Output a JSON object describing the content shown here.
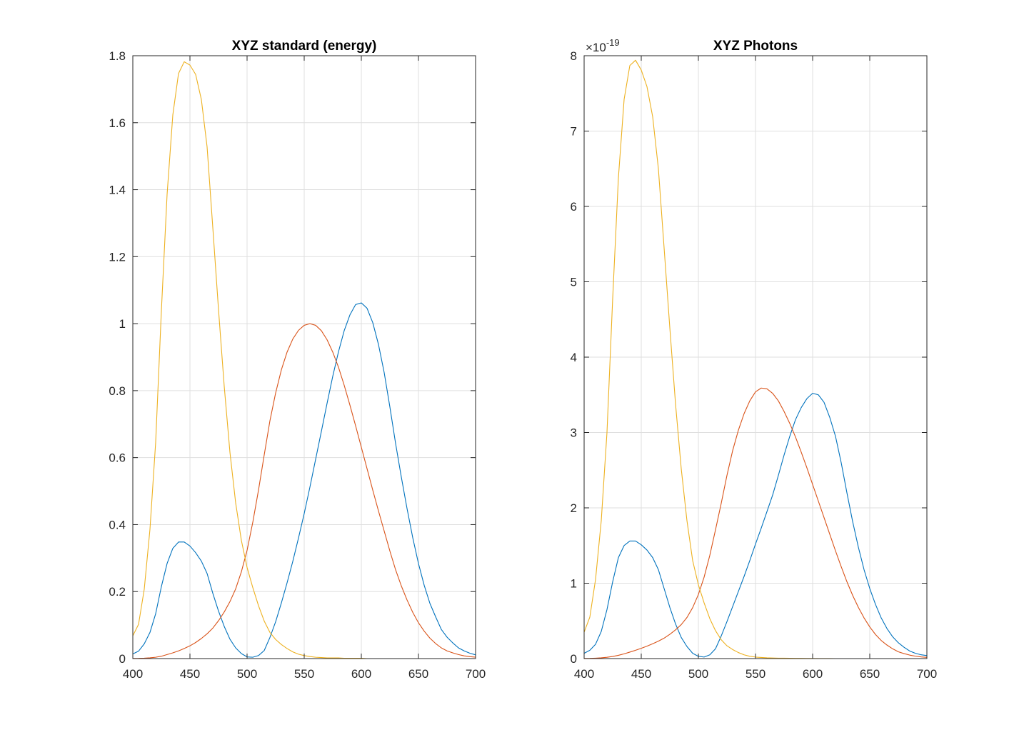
{
  "figure": {
    "background": "#ffffff",
    "line_colors": [
      "#0072BD",
      "#D95319",
      "#EDB120"
    ]
  },
  "chart_data": [
    {
      "type": "line",
      "title": "XYZ standard (energy)",
      "xlabel": "",
      "ylabel": "",
      "xlim": [
        400,
        700
      ],
      "ylim": [
        0,
        1.8
      ],
      "x_ticks": [
        400,
        450,
        500,
        550,
        600,
        650,
        700
      ],
      "x_tick_labels": [
        "400",
        "450",
        "500",
        "550",
        "600",
        "650",
        "700"
      ],
      "y_ticks": [
        0,
        0.2,
        0.4,
        0.6,
        0.8,
        1,
        1.2,
        1.4,
        1.6,
        1.8
      ],
      "y_tick_labels": [
        "0",
        "0.2",
        "0.4",
        "0.6",
        "0.8",
        "1",
        "1.2",
        "1.4",
        "1.6",
        "1.8"
      ],
      "exponent_label": null,
      "grid": true,
      "legend": "none",
      "x": [
        400,
        405,
        410,
        415,
        420,
        425,
        430,
        435,
        440,
        445,
        450,
        455,
        460,
        465,
        470,
        475,
        480,
        485,
        490,
        495,
        500,
        505,
        510,
        515,
        520,
        525,
        530,
        535,
        540,
        545,
        550,
        555,
        560,
        565,
        570,
        575,
        580,
        585,
        590,
        595,
        600,
        605,
        610,
        615,
        620,
        625,
        630,
        635,
        640,
        645,
        650,
        655,
        660,
        665,
        670,
        675,
        680,
        685,
        690,
        695,
        700
      ],
      "series": [
        {
          "color": "#0072BD",
          "values": [
            0.014,
            0.022,
            0.044,
            0.078,
            0.134,
            0.215,
            0.284,
            0.329,
            0.348,
            0.348,
            0.336,
            0.316,
            0.291,
            0.254,
            0.195,
            0.142,
            0.096,
            0.058,
            0.032,
            0.015,
            0.005,
            0.004,
            0.009,
            0.024,
            0.063,
            0.11,
            0.166,
            0.226,
            0.29,
            0.36,
            0.433,
            0.512,
            0.595,
            0.678,
            0.762,
            0.843,
            0.916,
            0.979,
            1.026,
            1.057,
            1.062,
            1.046,
            1.003,
            0.938,
            0.854,
            0.751,
            0.642,
            0.542,
            0.448,
            0.361,
            0.284,
            0.219,
            0.165,
            0.125,
            0.087,
            0.064,
            0.047,
            0.032,
            0.023,
            0.016,
            0.011
          ]
        },
        {
          "color": "#D95319",
          "values": [
            0.0004,
            0.0006,
            0.0012,
            0.0022,
            0.004,
            0.007,
            0.012,
            0.017,
            0.023,
            0.03,
            0.038,
            0.048,
            0.06,
            0.074,
            0.091,
            0.113,
            0.139,
            0.17,
            0.208,
            0.259,
            0.323,
            0.407,
            0.503,
            0.608,
            0.71,
            0.793,
            0.862,
            0.915,
            0.954,
            0.98,
            0.995,
            1.0,
            0.995,
            0.979,
            0.952,
            0.915,
            0.87,
            0.816,
            0.757,
            0.695,
            0.631,
            0.567,
            0.503,
            0.441,
            0.381,
            0.321,
            0.265,
            0.217,
            0.175,
            0.138,
            0.107,
            0.082,
            0.061,
            0.045,
            0.032,
            0.023,
            0.017,
            0.012,
            0.0082,
            0.0057,
            0.0041
          ]
        },
        {
          "color": "#EDB120",
          "values": [
            0.068,
            0.102,
            0.207,
            0.386,
            0.646,
            1.039,
            1.386,
            1.623,
            1.747,
            1.782,
            1.772,
            1.744,
            1.669,
            1.528,
            1.287,
            1.042,
            0.813,
            0.616,
            0.465,
            0.353,
            0.272,
            0.212,
            0.158,
            0.112,
            0.078,
            0.057,
            0.042,
            0.03,
            0.02,
            0.013,
            0.009,
            0.006,
            0.004,
            0.003,
            0.002,
            0.002,
            0.002,
            0.001,
            0.001,
            0.001,
            0.001,
            0.0,
            0.0,
            0.0,
            0.0,
            0.0,
            0.0,
            0.0,
            0.0,
            0.0,
            0.0,
            0.0,
            0.0,
            0.0,
            0.0,
            0.0,
            0.0,
            0.0,
            0.0,
            0.0,
            0.0
          ]
        }
      ]
    },
    {
      "type": "line",
      "title": "XYZ Photons",
      "xlabel": "",
      "ylabel": "",
      "xlim": [
        400,
        700
      ],
      "ylim": [
        0,
        8
      ],
      "x_ticks": [
        400,
        450,
        500,
        550,
        600,
        650,
        700
      ],
      "x_tick_labels": [
        "400",
        "450",
        "500",
        "550",
        "600",
        "650",
        "700"
      ],
      "y_ticks": [
        0,
        1,
        2,
        3,
        4,
        5,
        6,
        7,
        8
      ],
      "y_tick_labels": [
        "0",
        "1",
        "2",
        "3",
        "4",
        "5",
        "6",
        "7",
        "8"
      ],
      "exponent_label": {
        "base": "×10",
        "power": "-19"
      },
      "grid": true,
      "legend": "none",
      "x": [
        400,
        405,
        410,
        415,
        420,
        425,
        430,
        435,
        440,
        445,
        450,
        455,
        460,
        465,
        470,
        475,
        480,
        485,
        490,
        495,
        500,
        505,
        510,
        515,
        520,
        525,
        530,
        535,
        540,
        545,
        550,
        555,
        560,
        565,
        570,
        575,
        580,
        585,
        590,
        595,
        600,
        605,
        610,
        615,
        620,
        625,
        630,
        635,
        640,
        645,
        650,
        655,
        660,
        665,
        670,
        675,
        680,
        685,
        690,
        695,
        700
      ],
      "series": [
        {
          "color": "#0072BD",
          "values": [
            0.07,
            0.11,
            0.19,
            0.36,
            0.65,
            1.02,
            1.34,
            1.5,
            1.56,
            1.56,
            1.51,
            1.44,
            1.34,
            1.18,
            0.93,
            0.68,
            0.46,
            0.28,
            0.16,
            0.07,
            0.03,
            0.02,
            0.05,
            0.13,
            0.3,
            0.49,
            0.69,
            0.89,
            1.09,
            1.3,
            1.52,
            1.73,
            1.95,
            2.17,
            2.43,
            2.7,
            2.95,
            3.17,
            3.33,
            3.45,
            3.52,
            3.5,
            3.4,
            3.2,
            2.95,
            2.6,
            2.2,
            1.82,
            1.48,
            1.18,
            0.93,
            0.72,
            0.54,
            0.4,
            0.29,
            0.21,
            0.15,
            0.1,
            0.07,
            0.05,
            0.04
          ]
        },
        {
          "color": "#D95319",
          "values": [
            0.002,
            0.003,
            0.006,
            0.01,
            0.017,
            0.028,
            0.043,
            0.063,
            0.086,
            0.11,
            0.136,
            0.165,
            0.197,
            0.231,
            0.271,
            0.322,
            0.381,
            0.451,
            0.545,
            0.676,
            0.85,
            1.08,
            1.37,
            1.71,
            2.06,
            2.43,
            2.76,
            3.03,
            3.25,
            3.42,
            3.54,
            3.59,
            3.58,
            3.52,
            3.42,
            3.28,
            3.12,
            2.94,
            2.74,
            2.53,
            2.31,
            2.09,
            1.87,
            1.65,
            1.43,
            1.22,
            1.02,
            0.84,
            0.68,
            0.54,
            0.42,
            0.32,
            0.24,
            0.18,
            0.13,
            0.09,
            0.066,
            0.046,
            0.032,
            0.022,
            0.016
          ]
        },
        {
          "color": "#EDB120",
          "values": [
            0.35,
            0.55,
            1.05,
            1.83,
            3.0,
            4.78,
            6.38,
            7.42,
            7.87,
            7.94,
            7.81,
            7.59,
            7.19,
            6.5,
            5.45,
            4.39,
            3.38,
            2.52,
            1.83,
            1.3,
            0.98,
            0.74,
            0.53,
            0.37,
            0.25,
            0.17,
            0.12,
            0.08,
            0.05,
            0.03,
            0.02,
            0.015,
            0.01,
            0.008,
            0.006,
            0.005,
            0.004,
            0.003,
            0.003,
            0.002,
            0.002,
            0.001,
            0.001,
            0.001,
            0.0,
            0.0,
            0.0,
            0.0,
            0.0,
            0.0,
            0.0,
            0.0,
            0.0,
            0.0,
            0.0,
            0.0,
            0.0,
            0.0,
            0.0,
            0.0,
            0.0
          ]
        }
      ]
    }
  ]
}
